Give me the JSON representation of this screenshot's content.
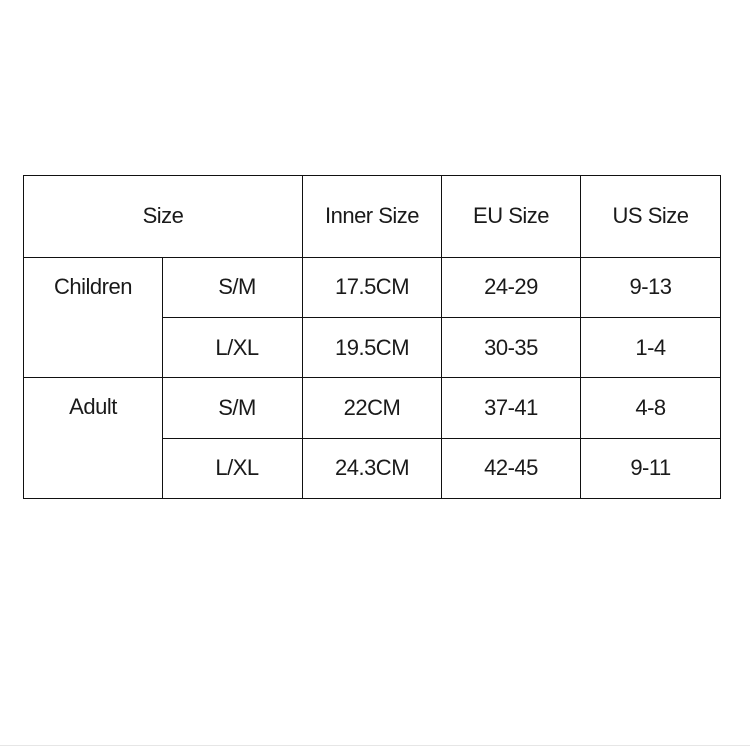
{
  "table": {
    "headers": {
      "size": "Size",
      "inner_size": "Inner Size",
      "eu_size": "EU Size",
      "us_size": "US Size"
    },
    "groups": [
      {
        "label": "Children",
        "rows": [
          {
            "fit": "S/M",
            "inner": "17.5CM",
            "eu": "24-29",
            "us": "9-13"
          },
          {
            "fit": "L/XL",
            "inner": "19.5CM",
            "eu": "30-35",
            "us": "1-4"
          }
        ]
      },
      {
        "label": "Adult",
        "rows": [
          {
            "fit": "S/M",
            "inner": "22CM",
            "eu": "37-41",
            "us": "4-8"
          },
          {
            "fit": "L/XL",
            "inner": "24.3CM",
            "eu": "42-45",
            "us": "9-11"
          }
        ]
      }
    ]
  }
}
